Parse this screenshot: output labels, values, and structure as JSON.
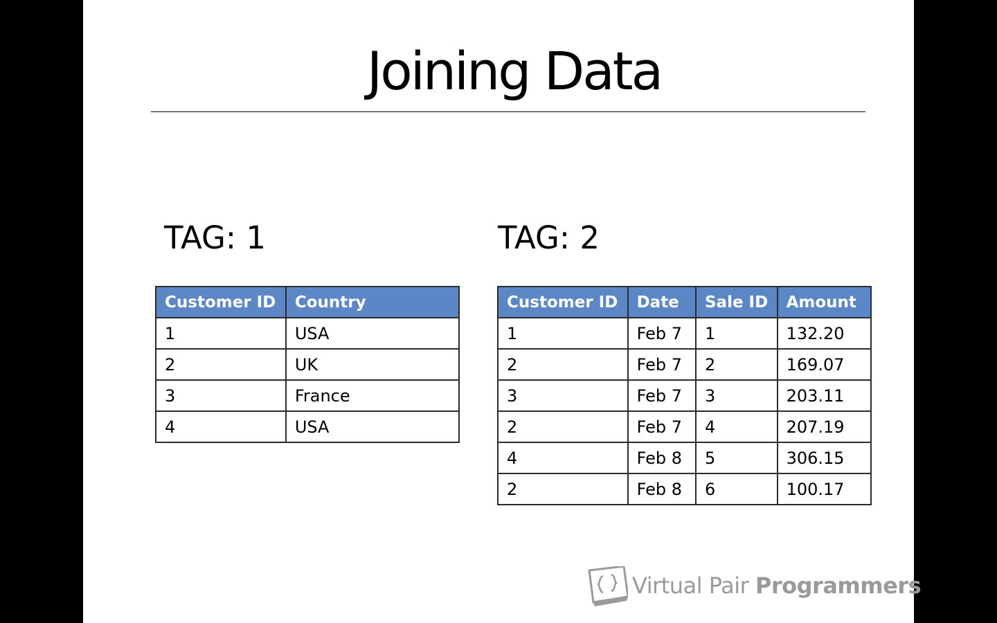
{
  "slide": {
    "title": "Joining Data"
  },
  "tag1": {
    "label": "TAG: 1",
    "headers": [
      "Customer ID",
      "Country"
    ],
    "rows": [
      [
        "1",
        "USA"
      ],
      [
        "2",
        "UK"
      ],
      [
        "3",
        "France"
      ],
      [
        "4",
        "USA"
      ]
    ]
  },
  "tag2": {
    "label": "TAG: 2",
    "headers": [
      "Customer ID",
      "Date",
      "Sale ID",
      "Amount"
    ],
    "rows": [
      [
        "1",
        "Feb 7",
        "1",
        "132.20"
      ],
      [
        "2",
        "Feb 7",
        "2",
        "169.07"
      ],
      [
        "3",
        "Feb 7",
        "3",
        "203.11"
      ],
      [
        "2",
        "Feb 7",
        "4",
        "207.19"
      ],
      [
        "4",
        "Feb 8",
        "5",
        "306.15"
      ],
      [
        "2",
        "Feb 8",
        "6",
        "100.17"
      ]
    ]
  },
  "logo": {
    "text_light": "Virtual Pair ",
    "text_bold": "Programmers",
    "icon": "logo-bracket-icon"
  },
  "colors": {
    "header_fill": "#5b87c7",
    "header_text": "#ffffff",
    "border": "#2b2b2b",
    "logo_gray": "#9a9a9a",
    "letterbox": "#000000"
  }
}
